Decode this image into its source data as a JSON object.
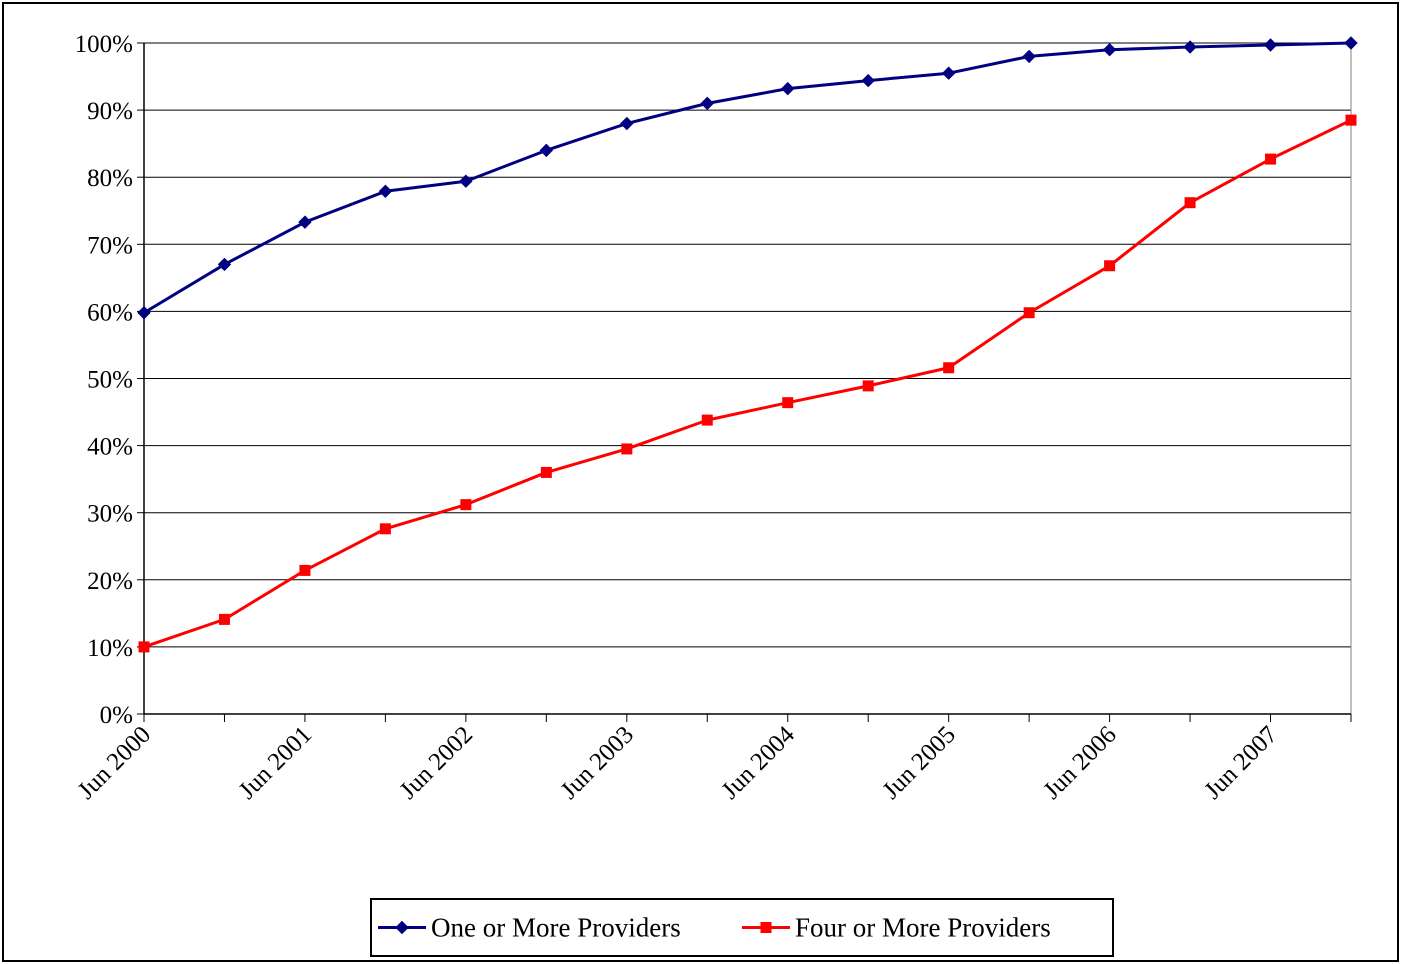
{
  "chart_data": {
    "type": "line",
    "title": "",
    "xlabel": "",
    "ylabel": "",
    "categories": [
      "Jun 2000",
      "Dec 2000",
      "Jun 2001",
      "Dec 2001",
      "Jun 2002",
      "Dec 2002",
      "Jun 2003",
      "Dec 2003",
      "Jun 2004",
      "Dec 2004",
      "Jun 2005",
      "Dec 2005",
      "Jun 2006",
      "Dec 2006",
      "Jun 2007",
      "Dec 2007"
    ],
    "x_tick_labels": [
      "Jun 2000",
      "Jun 2001",
      "Jun 2002",
      "Jun 2003",
      "Jun 2004",
      "Jun 2005",
      "Jun 2006",
      "Jun 2007"
    ],
    "y_tick_labels": [
      "0%",
      "10%",
      "20%",
      "30%",
      "40%",
      "50%",
      "60%",
      "70%",
      "80%",
      "90%",
      "100%"
    ],
    "ylim": [
      0,
      100
    ],
    "grid": "horizontal",
    "legend_position": "bottom",
    "series": [
      {
        "name": "One or More Providers",
        "color": "#000080",
        "marker": "diamond",
        "values": [
          59.8,
          67.0,
          73.3,
          77.9,
          79.4,
          84.0,
          88.0,
          91.0,
          93.2,
          94.4,
          95.5,
          98.0,
          99.0,
          99.4,
          99.7,
          100.0
        ]
      },
      {
        "name": "Four or More Providers",
        "color": "#ff0000",
        "marker": "square",
        "values": [
          10.0,
          14.1,
          21.4,
          27.6,
          31.2,
          36.0,
          39.5,
          43.8,
          46.4,
          48.9,
          51.6,
          59.8,
          66.8,
          76.2,
          82.7,
          88.5
        ]
      }
    ]
  }
}
